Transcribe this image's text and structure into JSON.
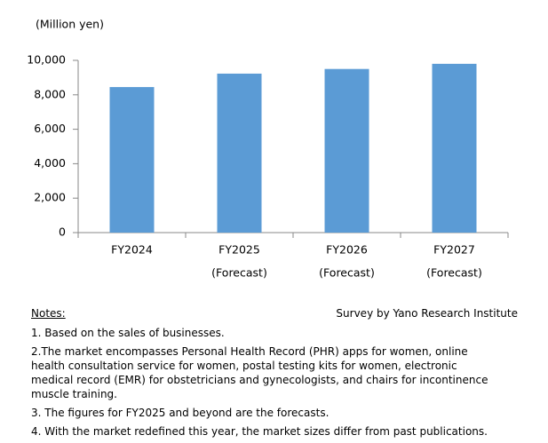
{
  "chart_data": {
    "type": "bar",
    "unit_label": "(Million yen)",
    "categories": [
      "FY2024",
      "FY2025",
      "FY2026",
      "FY2027"
    ],
    "category_notes": [
      null,
      "(Forecast)",
      "(Forecast)",
      "(Forecast)"
    ],
    "values": [
      8450,
      9230,
      9500,
      9800
    ],
    "color": "#5b9bd5",
    "ylim": [
      0,
      10000
    ],
    "yticks": [
      0,
      {
        "value": 2000,
        "label": "2,000"
      },
      {
        "value": 4000,
        "label": "4,000"
      },
      {
        "value": 6000,
        "label": "6,000"
      },
      {
        "value": 8000,
        "label": "8,000"
      },
      {
        "value": 10000,
        "label": "10,000"
      }
    ],
    "grid": false
  },
  "notes": {
    "heading": "Notes:",
    "source": "Survey by Yano Research Institute",
    "items": [
      "1. Based on the sales of businesses.",
      "2.The market encompasses Personal Health Record (PHR) apps for women, online health consultation service for women, postal testing kits for women, electronic medical record (EMR) for obstetricians and gynecologists, and chairs for incontinence muscle training.",
      "3. The figures for FY2025 and beyond are the forecasts.",
      "4. With the market redefined this year, the market sizes differ from past publications."
    ]
  }
}
